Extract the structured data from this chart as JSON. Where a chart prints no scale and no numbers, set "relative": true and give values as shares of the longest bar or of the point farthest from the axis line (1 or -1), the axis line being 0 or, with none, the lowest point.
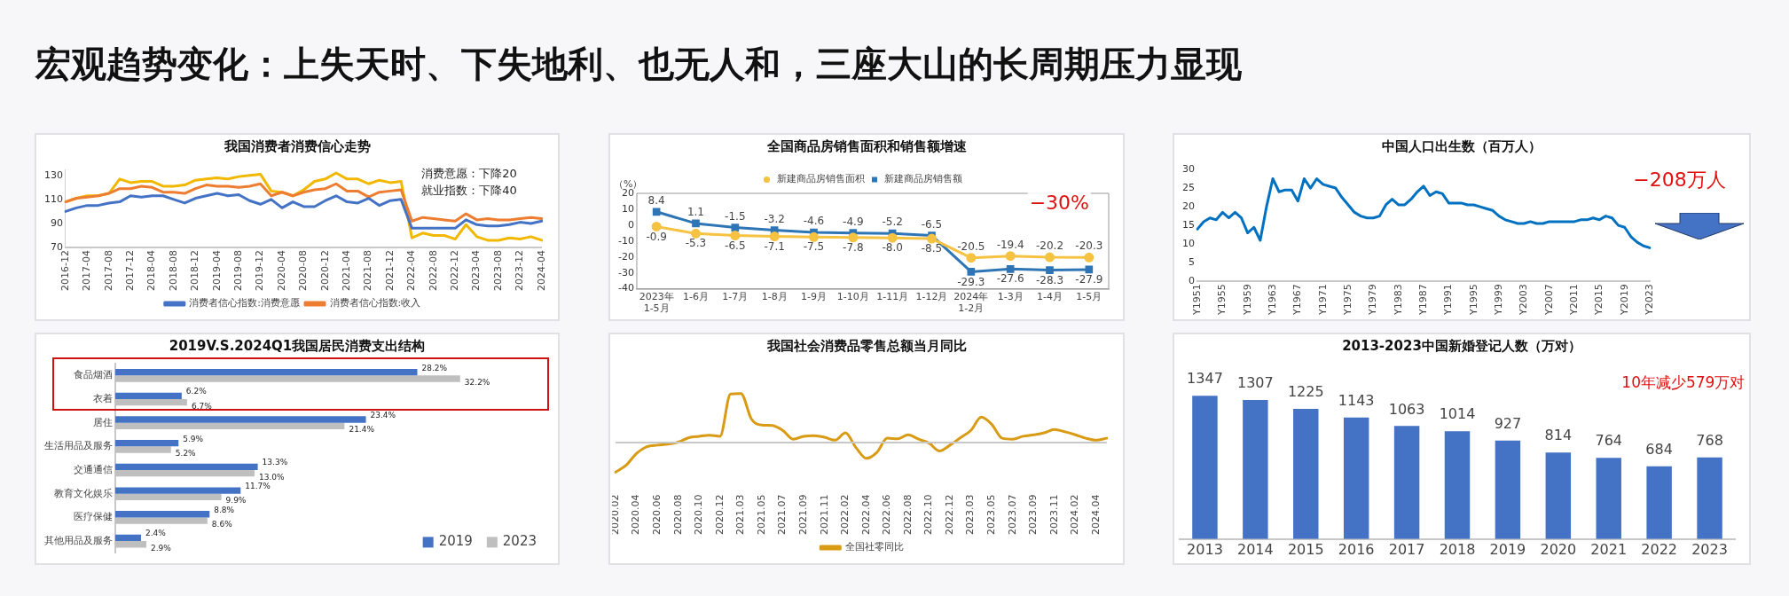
{
  "chart_data": [
    {
      "type": "other",
      "title": "宏观趋势变化：上失天时、下失地利、也无人和，三座大山的长周期压力显现"
    },
    {
      "type": "line",
      "title": "我国消费者消费信心走势",
      "legend": "bottom",
      "ylim": [
        70,
        135
      ],
      "yticks": [
        70,
        90,
        110,
        130
      ],
      "annotations": [
        "消费意愿：下降20",
        "就业指数：下降40"
      ],
      "categories": [
        "2016-12",
        null,
        "2017-04",
        null,
        "2017-08",
        null,
        "2017-12",
        null,
        "2018-04",
        null,
        "2018-08",
        null,
        "2018-12",
        null,
        "2019-04",
        null,
        "2019-08",
        null,
        "2019-12",
        null,
        "2020-04",
        null,
        "2020-08",
        null,
        "2020-12",
        null,
        "2021-04",
        null,
        "2021-08",
        null,
        "2021-12",
        null,
        "2022-04",
        null,
        "2022-08",
        null,
        "2022-12",
        null,
        "2023-04",
        null,
        "2023-08",
        null,
        "2023-12",
        null,
        "2024-04"
      ],
      "series": [
        {
          "name": "消费者信心指数:消费意愿",
          "color": "#4472c4",
          "values": [
            100,
            103,
            105,
            105,
            107,
            108,
            113,
            112,
            113,
            113,
            110,
            107,
            111,
            113,
            115,
            113,
            114,
            109,
            106,
            110,
            103,
            108,
            104,
            104,
            109,
            113,
            108,
            107,
            111,
            105,
            109,
            110,
            86,
            86,
            86,
            86,
            86,
            93,
            89,
            88,
            88,
            89,
            91,
            90,
            92
          ]
        },
        {
          "name": "消费者信心指数:收入",
          "color": "#ed7d31",
          "values": [
            108,
            111,
            112,
            113,
            115,
            119,
            119,
            121,
            120,
            116,
            116,
            115,
            119,
            122,
            121,
            121,
            120,
            121,
            123,
            113,
            116,
            113,
            116,
            118,
            119,
            123,
            117,
            117,
            112,
            116,
            117,
            118,
            92,
            95,
            94,
            93,
            92,
            98,
            93,
            94,
            93,
            93,
            94,
            95,
            94
          ]
        },
        {
          "color": "#f2b800",
          "values": [
            108,
            111,
            113,
            113,
            115,
            127,
            124,
            125,
            125,
            121,
            121,
            122,
            126,
            127,
            128,
            127,
            129,
            130,
            131,
            117,
            116,
            113,
            118,
            125,
            127,
            132,
            127,
            127,
            123,
            126,
            124,
            125,
            78,
            82,
            80,
            80,
            77,
            89,
            79,
            76,
            76,
            78,
            77,
            79,
            76
          ]
        }
      ]
    },
    {
      "type": "line",
      "title": "全国商品房销售面积和销售额增速",
      "ylabel": "（%）",
      "legend": "top",
      "ylim": [
        -40,
        20
      ],
      "yticks": [
        -40,
        -30,
        -20,
        -10,
        0,
        10,
        20
      ],
      "annotations": [
        "−30%"
      ],
      "categories": [
        "2023年 1-5月",
        "1-6月",
        "1-7月",
        "1-8月",
        "1-9月",
        "1-10月",
        "1-11月",
        "1-12月",
        "2024年 1-2月",
        "1-3月",
        "1-4月",
        "1-5月"
      ],
      "series": [
        {
          "name": "新建商品房销售面积",
          "color": "#f5c242",
          "marker": "circle",
          "values": [
            -0.9,
            -5.3,
            -6.5,
            -7.1,
            -7.5,
            -7.8,
            -8.0,
            -8.5,
            -20.5,
            -19.4,
            -20.2,
            -20.3
          ],
          "value_labels": [
            "-0.9",
            "-5.3",
            "-6.5",
            "-7.1",
            "-7.5",
            "-7.8",
            "-8.0",
            "-8.5",
            "-20.5",
            "-19.4",
            "-20.2",
            "-20.3"
          ]
        },
        {
          "name": "新建商品房销售额",
          "color": "#2e75b6",
          "marker": "square",
          "values": [
            8.4,
            1.1,
            -1.5,
            -3.2,
            -4.6,
            -4.9,
            -5.2,
            -6.5,
            -29.3,
            -27.6,
            -28.3,
            -27.9
          ],
          "value_labels": [
            "8.4",
            "1.1",
            "-1.5",
            "-3.2",
            "-4.6",
            "-4.9",
            "-5.2",
            "-6.5",
            "-29.3",
            "-27.6",
            "-28.3",
            "-27.9"
          ]
        }
      ]
    },
    {
      "type": "line",
      "title": "中国人口出生数（百万人）",
      "ylim": [
        0,
        30
      ],
      "yticks": [
        0,
        5,
        10,
        15,
        20,
        25,
        30
      ],
      "color": "#0070c0",
      "annotations": [
        "−208万人"
      ],
      "categories": [
        "Y1951",
        null,
        null,
        null,
        "Y1955",
        null,
        null,
        null,
        "Y1959",
        null,
        null,
        null,
        "Y1963",
        null,
        null,
        null,
        "Y1967",
        null,
        null,
        null,
        "Y1971",
        null,
        null,
        null,
        "Y1975",
        null,
        null,
        null,
        "Y1979",
        null,
        null,
        null,
        "Y1983",
        null,
        null,
        null,
        "Y1987",
        null,
        null,
        null,
        "Y1991",
        null,
        null,
        null,
        "Y1995",
        null,
        null,
        null,
        "Y1999",
        null,
        null,
        null,
        "Y2003",
        null,
        null,
        null,
        "Y2007",
        null,
        null,
        null,
        "Y2011",
        null,
        null,
        null,
        "Y2015",
        null,
        null,
        null,
        "Y2019",
        null,
        null,
        null,
        "Y2023"
      ],
      "values": [
        14,
        16,
        17,
        16.5,
        18.5,
        17,
        18.5,
        17,
        13,
        14.5,
        11,
        20,
        27.5,
        24,
        24.5,
        24.5,
        21.5,
        27.5,
        25,
        27.5,
        26,
        25.5,
        25,
        22.5,
        20.5,
        18.5,
        17.5,
        17,
        17,
        17.5,
        20.5,
        22,
        20.5,
        20.5,
        22,
        24,
        25.5,
        23,
        24,
        23.5,
        21,
        21,
        21,
        20.5,
        20.5,
        20,
        19.5,
        19,
        17.5,
        16.5,
        16,
        15.5,
        15.5,
        16,
        15.5,
        15.5,
        16,
        16,
        16,
        16,
        16,
        16.5,
        16.5,
        17,
        16.5,
        17.5,
        17,
        15,
        14.5,
        12,
        10.5,
        9.5,
        9
      ]
    },
    {
      "type": "bar",
      "title": "2019V.S.2024Q1我国居民消费支出结构",
      "orientation": "horizontal",
      "legend": "bottom right",
      "tick_labels": "y",
      "categories": [
        "食品烟酒",
        "衣着",
        "居住",
        "生活用品及服务",
        "交通通信",
        "教育文化娱乐",
        "医疗保健",
        "其他用品及服务"
      ],
      "series": [
        {
          "name": "2019",
          "color": "#4472c4",
          "values": [
            28.2,
            6.2,
            23.4,
            5.9,
            13.3,
            11.7,
            8.8,
            2.4
          ],
          "value_labels": [
            "28.2%",
            "6.2%",
            "23.4%",
            "5.9%",
            "13.3%",
            "11.7%",
            "8.8%",
            "2.4%"
          ]
        },
        {
          "name": "2023",
          "color": "#bfbfbf",
          "values": [
            32.2,
            6.7,
            21.4,
            5.2,
            13.0,
            9.9,
            8.6,
            2.9
          ],
          "value_labels": [
            "32.2%",
            "6.7%",
            "21.4%",
            "5.2%",
            "13.0%",
            "9.9%",
            "8.6%",
            "2.9%"
          ]
        }
      ]
    },
    {
      "type": "line",
      "title": "我国社会消费品零售总额当月同比",
      "relative": true,
      "legend": "bottom",
      "categories": [
        "2020.02",
        null,
        "2020.04",
        null,
        "2020.06",
        null,
        "2020.08",
        null,
        "2020.10",
        null,
        "2020.12",
        null,
        "2021.03",
        null,
        "2021.05",
        null,
        "2021.07",
        null,
        "2021.09",
        null,
        "2021.11",
        null,
        "2022.02",
        null,
        "2022.04",
        null,
        "2022.06",
        null,
        "2022.08",
        null,
        "2022.10",
        null,
        "2022.12",
        null,
        "2023.03",
        null,
        "2023.05",
        null,
        "2023.07",
        null,
        "2023.09",
        null,
        "2023.11",
        null,
        "2024.02",
        null,
        "2024.04",
        null
      ],
      "series": [
        {
          "name": "全国社零同比",
          "color": "#d99a14",
          "values": [
            -0.6,
            -0.46,
            -0.22,
            -0.08,
            -0.05,
            -0.03,
            0.01,
            0.1,
            0.13,
            0.15,
            0.13,
            0.99,
            1,
            0.48,
            0.36,
            0.35,
            0.25,
            0.07,
            0.13,
            0.14,
            0.11,
            0.05,
            0.2,
            -0.1,
            -0.32,
            -0.2,
            0.09,
            0.08,
            0.16,
            0.07,
            -0.01,
            -0.17,
            -0.05,
            0.1,
            0.25,
            0.52,
            0.37,
            0.09,
            0.07,
            0.13,
            0.16,
            0.2,
            0.27,
            0.22,
            0.16,
            0.09,
            0.05,
            0.09
          ]
        }
      ]
    },
    {
      "type": "bar",
      "title": "2013-2023中国新婚登记人数（万对）",
      "tick_labels": "x",
      "data_labels": true,
      "color": "#4472c4",
      "annotations": [
        "10年减少579万对"
      ],
      "categories": [
        "2013",
        "2014",
        "2015",
        "2016",
        "2017",
        "2018",
        "2019",
        "2020",
        "2021",
        "2022",
        "2023"
      ],
      "values": [
        1347,
        1307,
        1225,
        1143,
        1063,
        1014,
        927,
        814,
        764,
        684,
        768
      ]
    }
  ]
}
